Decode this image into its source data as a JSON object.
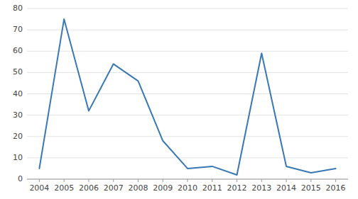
{
  "chart_data": {
    "type": "line",
    "x": [
      2004,
      2005,
      2006,
      2007,
      2008,
      2009,
      2010,
      2011,
      2012,
      2013,
      2014,
      2015,
      2016
    ],
    "values": [
      5,
      75,
      32,
      54,
      46,
      18,
      5,
      6,
      2,
      59,
      6,
      3,
      5
    ],
    "color": "#3878b4",
    "xlim": [
      2003.5,
      2016.5
    ],
    "xticks": [
      2004,
      2005,
      2006,
      2007,
      2008,
      2009,
      2010,
      2011,
      2012,
      2013,
      2014,
      2015,
      2016
    ],
    "ylim": [
      0,
      80
    ],
    "yticks": [
      0,
      10,
      20,
      30,
      40,
      50,
      60,
      70,
      80
    ],
    "grid": true
  }
}
